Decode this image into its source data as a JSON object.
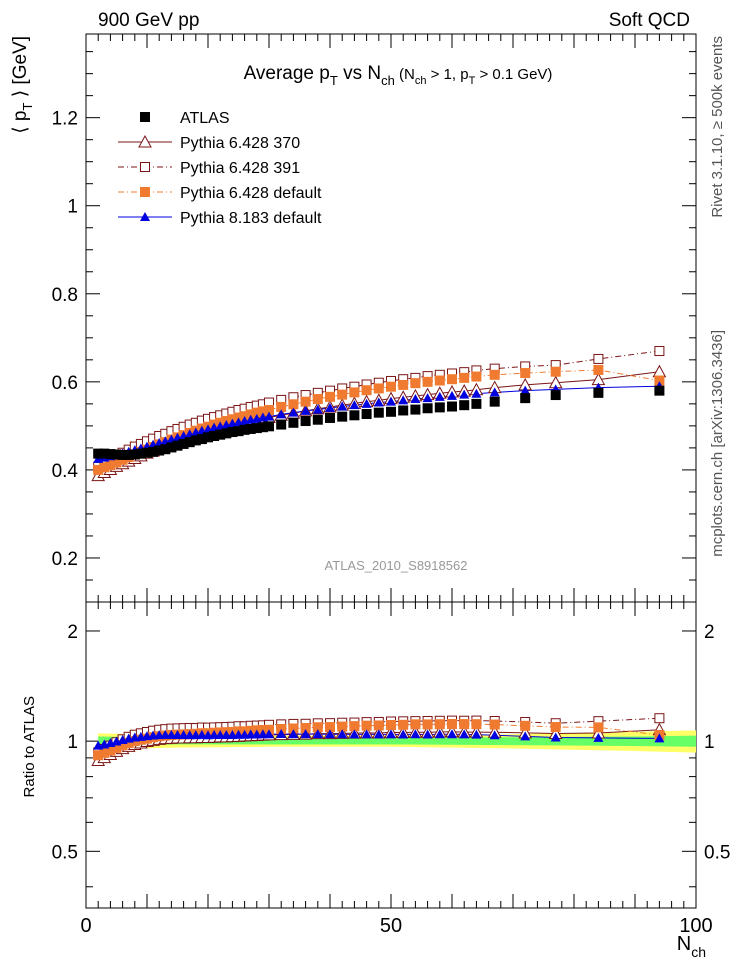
{
  "header": {
    "left": "900 GeV pp",
    "right": "Soft QCD"
  },
  "side_text": {
    "top": "Rivet 3.1.10, ≥ 500k events",
    "bottom": "mcplots.cern.ch [arXiv:1306.3436]"
  },
  "watermark": "ATLAS_2010_S8918562",
  "chart_data": [
    {
      "type": "scatter",
      "panel": "main",
      "title": "Average p_T vs N_ch (N_ch > 1, p_T > 0.1 GeV)",
      "title_parts": {
        "main": "Average p",
        "sub1": "T",
        "mid": " vs N",
        "sub2": "ch",
        "cut_a": " (N",
        "cut_sub_a": "ch",
        "cut_b": " > 1, p",
        "cut_sub_b": "T",
        "cut_c": " > 0.1 GeV)"
      },
      "ylabel": "⟨ p_T ⟩ [GeV]",
      "ylabel_parts": {
        "a": "⟨ p",
        "sub": "T",
        "b": " ⟩ [GeV]"
      },
      "xlim": [
        0,
        100
      ],
      "ylim": [
        0.1,
        1.39
      ],
      "yticks": [
        0.2,
        0.4,
        0.6,
        0.8,
        1,
        1.2
      ],
      "ytick_labels": [
        "0.2",
        "0.4",
        "0.6",
        "0.8",
        "1",
        "1.2"
      ],
      "legend_position": "top-left",
      "series": [
        {
          "name": "ATLAS",
          "color": "#000000",
          "marker": "filled-square",
          "line": "none",
          "x": [
            2,
            3,
            4,
            5,
            6,
            7,
            8,
            9,
            10,
            11,
            12,
            13,
            14,
            15,
            16,
            17,
            18,
            19,
            20,
            21,
            22,
            23,
            24,
            25,
            26,
            27,
            28,
            29,
            30,
            32,
            34,
            36,
            38,
            40,
            42,
            44,
            46,
            48,
            50,
            52,
            54,
            56,
            58,
            60,
            62,
            64,
            67,
            72,
            77,
            84,
            94
          ],
          "y": [
            0.437,
            0.437,
            0.436,
            0.435,
            0.434,
            0.434,
            0.435,
            0.437,
            0.439,
            0.441,
            0.444,
            0.447,
            0.451,
            0.455,
            0.459,
            0.463,
            0.467,
            0.47,
            0.474,
            0.477,
            0.48,
            0.483,
            0.486,
            0.488,
            0.491,
            0.493,
            0.495,
            0.497,
            0.499,
            0.503,
            0.507,
            0.511,
            0.514,
            0.518,
            0.521,
            0.524,
            0.527,
            0.53,
            0.532,
            0.535,
            0.537,
            0.54,
            0.542,
            0.544,
            0.547,
            0.55,
            0.555,
            0.563,
            0.57,
            0.575,
            0.58
          ]
        },
        {
          "name": "Pythia 6.428 370",
          "color": "#7a1416",
          "marker": "open-triangle",
          "line": "solid",
          "x": [
            2,
            3,
            4,
            5,
            6,
            7,
            8,
            9,
            10,
            11,
            12,
            13,
            14,
            15,
            16,
            17,
            18,
            19,
            20,
            21,
            22,
            23,
            24,
            25,
            26,
            27,
            28,
            29,
            30,
            32,
            34,
            36,
            38,
            40,
            42,
            44,
            46,
            48,
            50,
            52,
            54,
            56,
            58,
            60,
            62,
            64,
            67,
            72,
            77,
            84,
            94
          ],
          "y": [
            0.387,
            0.394,
            0.401,
            0.408,
            0.414,
            0.42,
            0.426,
            0.432,
            0.438,
            0.443,
            0.449,
            0.454,
            0.459,
            0.464,
            0.468,
            0.473,
            0.477,
            0.481,
            0.485,
            0.489,
            0.493,
            0.496,
            0.5,
            0.503,
            0.507,
            0.51,
            0.513,
            0.516,
            0.519,
            0.524,
            0.529,
            0.534,
            0.539,
            0.543,
            0.547,
            0.551,
            0.555,
            0.558,
            0.562,
            0.565,
            0.568,
            0.571,
            0.574,
            0.577,
            0.579,
            0.582,
            0.587,
            0.593,
            0.598,
            0.605,
            0.623
          ]
        },
        {
          "name": "Pythia 6.428 391",
          "color": "#7a1416",
          "marker": "open-square",
          "line": "dash-dot",
          "x": [
            2,
            3,
            4,
            5,
            6,
            7,
            8,
            9,
            10,
            11,
            12,
            13,
            14,
            15,
            16,
            17,
            18,
            19,
            20,
            21,
            22,
            23,
            24,
            25,
            26,
            27,
            28,
            29,
            30,
            32,
            34,
            36,
            38,
            40,
            42,
            44,
            46,
            48,
            50,
            52,
            54,
            56,
            58,
            60,
            62,
            64,
            67,
            72,
            77,
            84,
            94
          ],
          "y": [
            0.407,
            0.416,
            0.424,
            0.432,
            0.439,
            0.446,
            0.453,
            0.459,
            0.465,
            0.471,
            0.477,
            0.482,
            0.488,
            0.493,
            0.498,
            0.503,
            0.507,
            0.512,
            0.516,
            0.52,
            0.524,
            0.528,
            0.532,
            0.536,
            0.539,
            0.543,
            0.546,
            0.549,
            0.553,
            0.559,
            0.565,
            0.57,
            0.575,
            0.58,
            0.585,
            0.589,
            0.594,
            0.598,
            0.602,
            0.606,
            0.609,
            0.613,
            0.616,
            0.619,
            0.622,
            0.626,
            0.63,
            0.635,
            0.638,
            0.652,
            0.67
          ]
        },
        {
          "name": "Pythia 6.428 default",
          "color": "#f07b30",
          "marker": "filled-square",
          "line": "dash-dot",
          "x": [
            2,
            3,
            4,
            5,
            6,
            7,
            8,
            9,
            10,
            11,
            12,
            13,
            14,
            15,
            16,
            17,
            18,
            19,
            20,
            21,
            22,
            23,
            24,
            25,
            26,
            27,
            28,
            29,
            30,
            32,
            34,
            36,
            38,
            40,
            42,
            44,
            46,
            48,
            50,
            52,
            54,
            56,
            58,
            60,
            62,
            64,
            67,
            72,
            77,
            84,
            94
          ],
          "y": [
            0.4,
            0.406,
            0.411,
            0.417,
            0.423,
            0.429,
            0.435,
            0.441,
            0.446,
            0.452,
            0.458,
            0.463,
            0.469,
            0.474,
            0.479,
            0.484,
            0.489,
            0.494,
            0.498,
            0.503,
            0.507,
            0.511,
            0.515,
            0.519,
            0.522,
            0.526,
            0.53,
            0.533,
            0.536,
            0.543,
            0.549,
            0.555,
            0.561,
            0.566,
            0.571,
            0.576,
            0.581,
            0.585,
            0.589,
            0.593,
            0.597,
            0.6,
            0.603,
            0.606,
            0.609,
            0.612,
            0.616,
            0.62,
            0.623,
            0.627,
            0.603
          ]
        },
        {
          "name": "Pythia 8.183 default",
          "color": "#0000e0",
          "marker": "filled-triangle",
          "line": "solid",
          "x": [
            2,
            3,
            4,
            5,
            6,
            7,
            8,
            9,
            10,
            11,
            12,
            13,
            14,
            15,
            16,
            17,
            18,
            19,
            20,
            21,
            22,
            23,
            24,
            25,
            26,
            27,
            28,
            29,
            30,
            32,
            34,
            36,
            38,
            40,
            42,
            44,
            46,
            48,
            50,
            52,
            54,
            56,
            58,
            60,
            62,
            64,
            67,
            72,
            77,
            84,
            94
          ],
          "y": [
            0.425,
            0.428,
            0.431,
            0.434,
            0.437,
            0.441,
            0.445,
            0.449,
            0.453,
            0.457,
            0.461,
            0.465,
            0.469,
            0.473,
            0.477,
            0.481,
            0.485,
            0.489,
            0.492,
            0.496,
            0.499,
            0.502,
            0.505,
            0.508,
            0.511,
            0.514,
            0.516,
            0.519,
            0.521,
            0.526,
            0.53,
            0.534,
            0.537,
            0.541,
            0.544,
            0.547,
            0.55,
            0.553,
            0.555,
            0.558,
            0.561,
            0.563,
            0.566,
            0.568,
            0.571,
            0.573,
            0.576,
            0.58,
            0.583,
            0.587,
            0.59
          ]
        }
      ]
    },
    {
      "type": "scatter",
      "panel": "ratio",
      "ylabel": "Ratio to ATLAS",
      "xlabel": "N_ch",
      "xlabel_parts": {
        "a": "N",
        "sub": "ch"
      },
      "xlim": [
        0,
        100
      ],
      "ylim": [
        0.35,
        2.4
      ],
      "xticks": [
        0,
        50,
        100
      ],
      "xtick_labels": [
        "0",
        "50",
        "100"
      ],
      "yticks": [
        0.5,
        1,
        2
      ],
      "ytick_labels": [
        "0.5",
        "1",
        "2"
      ],
      "band": {
        "x": [
          2,
          15,
          30,
          50,
          70,
          90,
          100
        ],
        "inner_half_width": [
          0.03,
          0.02,
          0.02,
          0.02,
          0.025,
          0.03,
          0.035
        ],
        "outer_half_width": [
          0.05,
          0.04,
          0.035,
          0.035,
          0.045,
          0.06,
          0.07
        ],
        "inner_color": "#66ff66",
        "outer_color": "#ffff66"
      }
    }
  ]
}
